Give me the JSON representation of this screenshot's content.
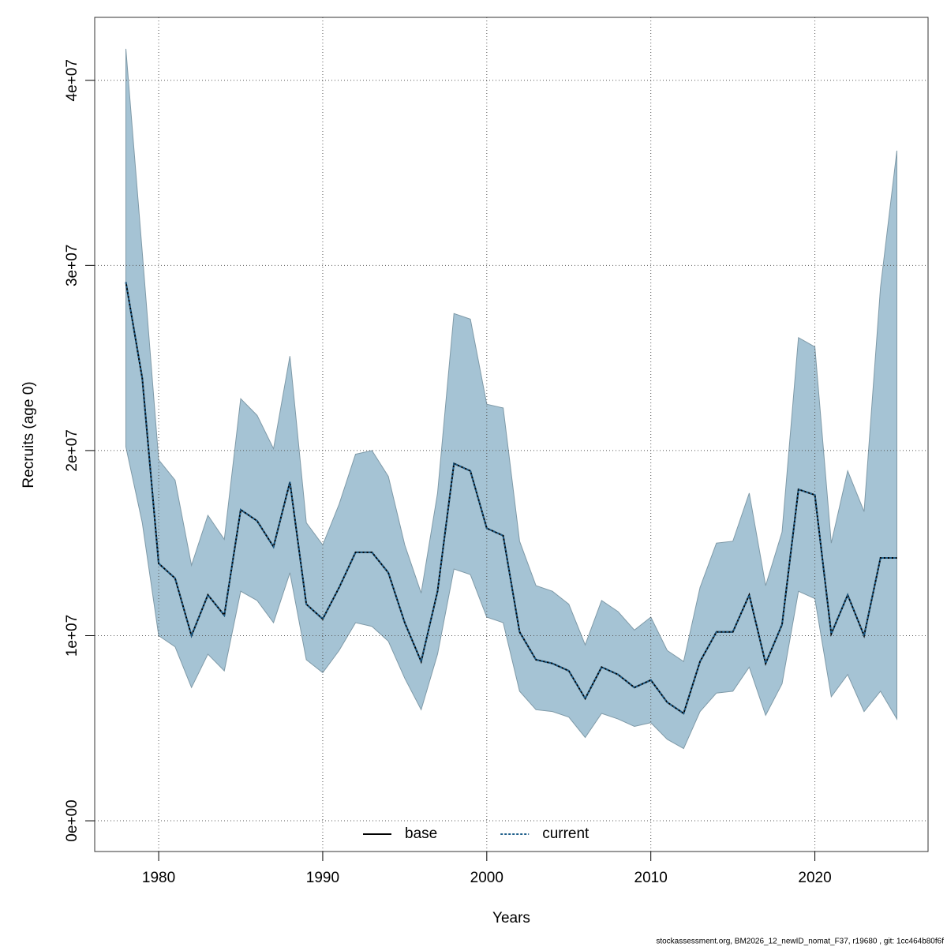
{
  "chart_data": {
    "type": "line",
    "xlabel": "Years",
    "ylabel": "Recruits (age 0)",
    "footnote": "stockassessment.org, BM2026_12_newID_nomat_F37, r19680 , git: 1cc464b80f6f",
    "x": [
      1978,
      1979,
      1980,
      1981,
      1982,
      1983,
      1984,
      1985,
      1986,
      1987,
      1988,
      1989,
      1990,
      1991,
      1992,
      1993,
      1994,
      1995,
      1996,
      1997,
      1998,
      1999,
      2000,
      2001,
      2002,
      2003,
      2004,
      2005,
      2006,
      2007,
      2008,
      2009,
      2010,
      2011,
      2012,
      2013,
      2014,
      2015,
      2016,
      2017,
      2018,
      2019,
      2020,
      2021,
      2022,
      2023,
      2024,
      2025
    ],
    "series": [
      {
        "name": "base",
        "color": "#000000",
        "dash": "solid",
        "values": [
          29100000,
          23900000,
          13900000,
          13100000,
          10000000,
          12200000,
          11100000,
          16800000,
          16200000,
          14800000,
          18300000,
          11700000,
          10900000,
          12600000,
          14500000,
          14500000,
          13400000,
          10700000,
          8600000,
          12400000,
          19300000,
          18900000,
          15800000,
          15400000,
          10200000,
          8700000,
          8500000,
          8100000,
          6600000,
          8300000,
          7900000,
          7200000,
          7600000,
          6400000,
          5800000,
          8600000,
          10200000,
          10200000,
          12200000,
          8500000,
          10600000,
          17900000,
          17600000,
          10100000,
          12200000,
          10000000,
          14200000,
          14200000
        ]
      },
      {
        "name": "current",
        "color": "#1f5f8b",
        "dash": "dotted",
        "values": [
          29100000,
          23900000,
          13900000,
          13100000,
          10000000,
          12200000,
          11100000,
          16800000,
          16200000,
          14800000,
          18300000,
          11700000,
          10900000,
          12600000,
          14500000,
          14500000,
          13400000,
          10700000,
          8600000,
          12400000,
          19300000,
          18900000,
          15800000,
          15400000,
          10200000,
          8700000,
          8500000,
          8100000,
          6600000,
          8300000,
          7900000,
          7200000,
          7600000,
          6400000,
          5800000,
          8600000,
          10200000,
          10200000,
          12200000,
          8500000,
          10600000,
          17900000,
          17600000,
          10100000,
          12200000,
          10000000,
          14200000,
          14200000
        ]
      }
    ],
    "band": {
      "color": "#a5c3d4",
      "upper": [
        41700000,
        30700000,
        19500000,
        18400000,
        13800000,
        16500000,
        15200000,
        22800000,
        21900000,
        20100000,
        25100000,
        16100000,
        14900000,
        17100000,
        19800000,
        20000000,
        18600000,
        14900000,
        12300000,
        17700000,
        27400000,
        27100000,
        22500000,
        22300000,
        15100000,
        12700000,
        12400000,
        11700000,
        9500000,
        11900000,
        11300000,
        10300000,
        11000000,
        9200000,
        8600000,
        12600000,
        15000000,
        15100000,
        17700000,
        12700000,
        15600000,
        26100000,
        25600000,
        15000000,
        18900000,
        16700000,
        28800000,
        36200000
      ],
      "lower": [
        20200000,
        16100000,
        10000000,
        9400000,
        7200000,
        9000000,
        8100000,
        12400000,
        11900000,
        10700000,
        13400000,
        8700000,
        8000000,
        9200000,
        10700000,
        10500000,
        9700000,
        7700000,
        6000000,
        9000000,
        13600000,
        13300000,
        11000000,
        10700000,
        7000000,
        6000000,
        5900000,
        5600000,
        4500000,
        5800000,
        5500000,
        5100000,
        5300000,
        4400000,
        3900000,
        5900000,
        6900000,
        7000000,
        8300000,
        5700000,
        7400000,
        12400000,
        12000000,
        6700000,
        7900000,
        5900000,
        7000000,
        5500000
      ]
    },
    "xlim": [
      1976.1,
      2026.9
    ],
    "ylim": [
      -1660000,
      43400000
    ],
    "xticks": [
      1980,
      1990,
      2000,
      2010,
      2020
    ],
    "yticks": [
      {
        "value": 0,
        "label": "0e+00"
      },
      {
        "value": 10000000,
        "label": "1e+07"
      },
      {
        "value": 20000000,
        "label": "2e+07"
      },
      {
        "value": 30000000,
        "label": "3e+07"
      },
      {
        "value": 40000000,
        "label": "4e+07"
      }
    ],
    "grid": true,
    "legend": "bottom"
  }
}
